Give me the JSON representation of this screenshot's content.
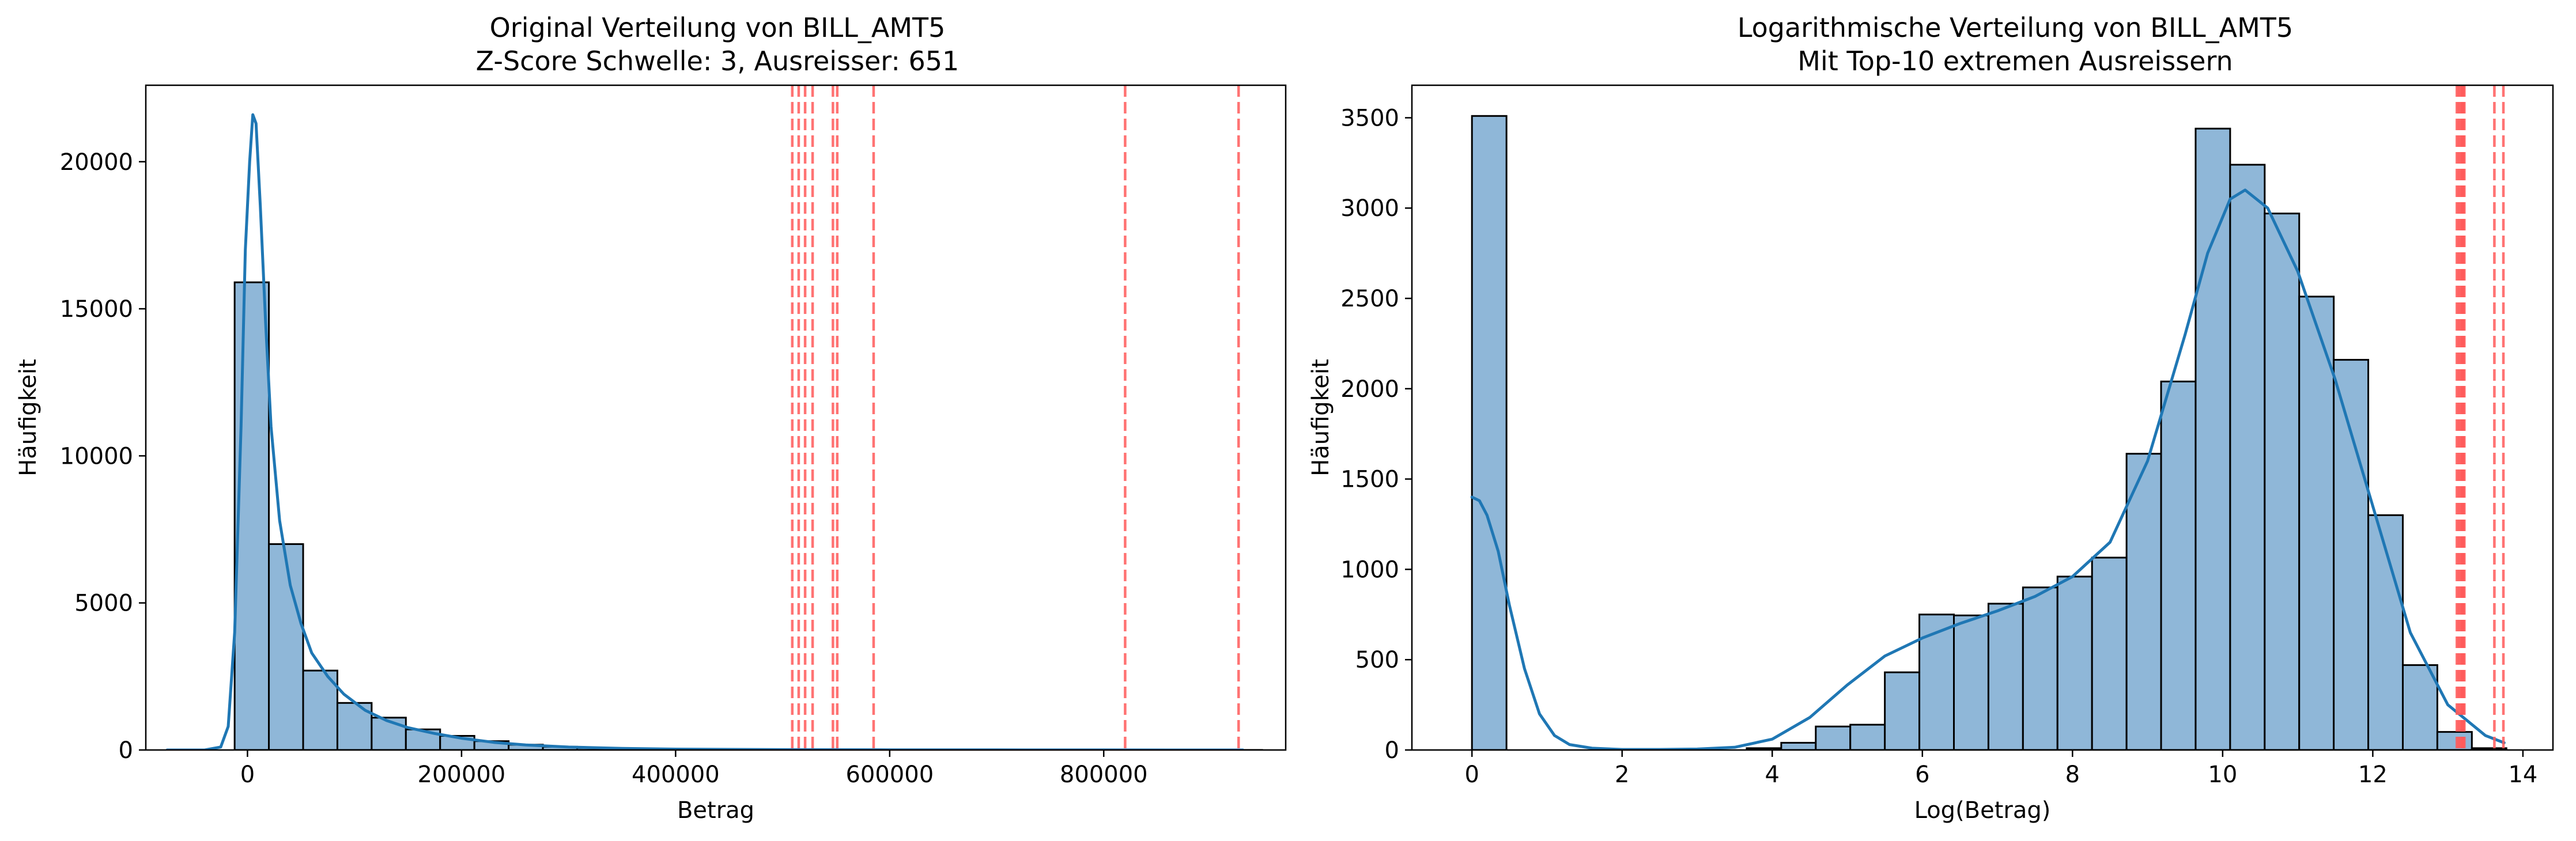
{
  "chart_data": [
    {
      "type": "histogram",
      "title_line1": "Original Verteilung von BILL_AMT5",
      "title_line2": "Z-Score Schwelle: 3, Ausreisser: 651",
      "xlabel": "Betrag",
      "ylabel": "Häufigkeit",
      "xlim": [
        -95000,
        970000
      ],
      "ylim": [
        0,
        22600
      ],
      "xticks": [
        0,
        200000,
        400000,
        600000,
        800000
      ],
      "xtick_labels": [
        "0",
        "200000",
        "400000",
        "600000",
        "800000"
      ],
      "yticks": [
        0,
        5000,
        10000,
        15000,
        20000
      ],
      "ytick_labels": [
        "0",
        "5000",
        "10000",
        "15000",
        "20000"
      ],
      "bins": [
        {
          "x0": -12000,
          "x1": 20000,
          "count": 15900
        },
        {
          "x0": 20000,
          "x1": 52000,
          "count": 7000
        },
        {
          "x0": 52000,
          "x1": 84000,
          "count": 2700
        },
        {
          "x0": 84000,
          "x1": 116000,
          "count": 1600
        },
        {
          "x0": 116000,
          "x1": 148000,
          "count": 1100
        },
        {
          "x0": 148000,
          "x1": 180000,
          "count": 700
        },
        {
          "x0": 180000,
          "x1": 212000,
          "count": 480
        },
        {
          "x0": 212000,
          "x1": 244000,
          "count": 300
        },
        {
          "x0": 244000,
          "x1": 276000,
          "count": 180
        },
        {
          "x0": 276000,
          "x1": 308000,
          "count": 110
        },
        {
          "x0": 308000,
          "x1": 340000,
          "count": 70
        },
        {
          "x0": 340000,
          "x1": 372000,
          "count": 45
        },
        {
          "x0": 372000,
          "x1": 404000,
          "count": 30
        },
        {
          "x0": 404000,
          "x1": 436000,
          "count": 20
        },
        {
          "x0": 436000,
          "x1": 468000,
          "count": 14
        },
        {
          "x0": 468000,
          "x1": 500000,
          "count": 10
        },
        {
          "x0": 500000,
          "x1": 532000,
          "count": 8
        },
        {
          "x0": 532000,
          "x1": 564000,
          "count": 5
        },
        {
          "x0": 564000,
          "x1": 596000,
          "count": 3
        },
        {
          "x0": 596000,
          "x1": 628000,
          "count": 1
        },
        {
          "x0": 820000,
          "x1": 852000,
          "count": 1
        },
        {
          "x0": 916000,
          "x1": 948000,
          "count": 1
        }
      ],
      "kde": {
        "x": [
          -75000,
          -40000,
          -25000,
          -18000,
          -12000,
          -6000,
          -2000,
          2000,
          5000,
          8000,
          12000,
          17000,
          22000,
          30000,
          40000,
          50000,
          60000,
          75000,
          90000,
          110000,
          130000,
          150000,
          175000,
          200000,
          230000,
          260000,
          300000,
          350000,
          400000,
          500000,
          600000,
          700000,
          800000,
          930000
        ],
        "y": [
          0,
          0,
          100,
          800,
          4000,
          11000,
          17000,
          20000,
          21600,
          21300,
          18500,
          14500,
          11000,
          7800,
          5600,
          4300,
          3300,
          2500,
          1900,
          1350,
          1000,
          760,
          560,
          400,
          260,
          170,
          100,
          55,
          30,
          12,
          5,
          3,
          2,
          0
        ]
      },
      "outlier_lines": [
        509000,
        515000,
        521000,
        528000,
        547000,
        551000,
        585000,
        820000,
        926000
      ]
    },
    {
      "type": "histogram",
      "title_line1": "Logarithmische Verteilung von BILL_AMT5",
      "title_line2": "Mit Top-10 extremen Ausreissern",
      "xlabel": "Log(Betrag)",
      "ylabel": "Häufigkeit",
      "xlim": [
        -0.8,
        14.4
      ],
      "ylim": [
        0,
        3680
      ],
      "xticks": [
        0,
        2,
        4,
        6,
        8,
        10,
        12,
        14
      ],
      "xtick_labels": [
        "0",
        "2",
        "4",
        "6",
        "8",
        "10",
        "12",
        "14"
      ],
      "yticks": [
        0,
        500,
        1000,
        1500,
        2000,
        2500,
        3000,
        3500
      ],
      "ytick_labels": [
        "0",
        "500",
        "1000",
        "1500",
        "2000",
        "2500",
        "3000",
        "3500"
      ],
      "bins": [
        {
          "x0": 0.0,
          "x1": 0.46,
          "count": 3510
        },
        {
          "x0": 3.66,
          "x1": 4.12,
          "count": 10
        },
        {
          "x0": 4.12,
          "x1": 4.58,
          "count": 40
        },
        {
          "x0": 4.58,
          "x1": 5.04,
          "count": 130
        },
        {
          "x0": 5.04,
          "x1": 5.5,
          "count": 140
        },
        {
          "x0": 5.5,
          "x1": 5.96,
          "count": 430
        },
        {
          "x0": 5.96,
          "x1": 6.42,
          "count": 750
        },
        {
          "x0": 6.42,
          "x1": 6.88,
          "count": 745
        },
        {
          "x0": 6.88,
          "x1": 7.34,
          "count": 810
        },
        {
          "x0": 7.34,
          "x1": 7.8,
          "count": 900
        },
        {
          "x0": 7.8,
          "x1": 8.26,
          "count": 960
        },
        {
          "x0": 8.26,
          "x1": 8.72,
          "count": 1065
        },
        {
          "x0": 8.72,
          "x1": 9.18,
          "count": 1640
        },
        {
          "x0": 9.18,
          "x1": 9.64,
          "count": 2040
        },
        {
          "x0": 9.64,
          "x1": 10.1,
          "count": 3440
        },
        {
          "x0": 10.1,
          "x1": 10.56,
          "count": 3240
        },
        {
          "x0": 10.56,
          "x1": 11.02,
          "count": 2970
        },
        {
          "x0": 11.02,
          "x1": 11.48,
          "count": 2510
        },
        {
          "x0": 11.48,
          "x1": 11.94,
          "count": 2160
        },
        {
          "x0": 11.94,
          "x1": 12.4,
          "count": 1300
        },
        {
          "x0": 12.4,
          "x1": 12.86,
          "count": 470
        },
        {
          "x0": 12.86,
          "x1": 13.32,
          "count": 100
        },
        {
          "x0": 13.32,
          "x1": 13.78,
          "count": 10
        }
      ],
      "kde": {
        "x": [
          0,
          0.1,
          0.2,
          0.35,
          0.5,
          0.7,
          0.9,
          1.1,
          1.3,
          1.6,
          2.0,
          2.5,
          3.0,
          3.5,
          4.0,
          4.5,
          5.0,
          5.5,
          6.0,
          6.5,
          7.0,
          7.5,
          8.0,
          8.5,
          9.0,
          9.5,
          9.8,
          10.1,
          10.3,
          10.6,
          11.0,
          11.5,
          12.0,
          12.5,
          13.0,
          13.5,
          13.75
        ],
        "y": [
          1400,
          1380,
          1300,
          1100,
          800,
          450,
          200,
          80,
          30,
          10,
          3,
          3,
          5,
          15,
          60,
          180,
          360,
          520,
          620,
          700,
          770,
          850,
          960,
          1150,
          1600,
          2300,
          2750,
          3050,
          3100,
          3000,
          2650,
          2050,
          1350,
          650,
          250,
          80,
          40
        ]
      },
      "outlier_lines": [
        13.12,
        13.14,
        13.16,
        13.18,
        13.19,
        13.2,
        13.21,
        13.22,
        13.62,
        13.74
      ]
    }
  ],
  "colors": {
    "bar_fill": "#8fb7d8",
    "bar_edge": "#000000",
    "kde": "#1f77b4",
    "outlier": "#ff5a5a"
  }
}
